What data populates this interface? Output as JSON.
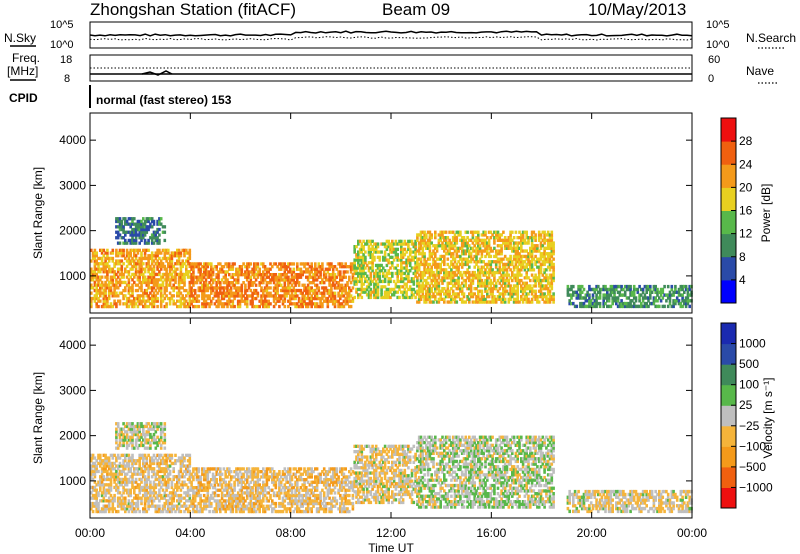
{
  "header": {
    "station": "Zhongshan Station (fitACF)",
    "beam": "Beam 09",
    "date": "10/May/2013"
  },
  "noise_panel": {
    "left_label": "N.Sky",
    "left_ticks": [
      "10^5",
      "10^0"
    ],
    "right_label": "N.Search",
    "right_ticks": [
      "10^5",
      "10^0"
    ]
  },
  "freq_panel": {
    "left_label_1": "Freq.",
    "left_label_2": "[MHz]",
    "left_ticks": [
      "18",
      "8"
    ],
    "right_label": "Nave",
    "right_ticks": [
      "60",
      "0"
    ]
  },
  "cpid": {
    "label": "CPID",
    "text": "normal (fast stereo) 153"
  },
  "time_axis": {
    "xlabel": "Time UT",
    "ticks": [
      "00:00",
      "04:00",
      "08:00",
      "12:00",
      "16:00",
      "20:00",
      "00:00"
    ]
  },
  "colors": {
    "power_scale": [
      "#0000ff",
      "#2a4aa8",
      "#3f8a5a",
      "#58b84a",
      "#e8d020",
      "#f49a1a",
      "#f06010",
      "#ee1010"
    ],
    "velocity_scale": [
      "#ee1010",
      "#f06010",
      "#f49a1a",
      "#f5b43a",
      "#bfbfbf",
      "#58b84a",
      "#3f8a5a",
      "#2a4aa8",
      "#1a2ab0"
    ]
  },
  "chart_data": [
    {
      "type": "heatmap",
      "title": "",
      "xlabel": "Time UT",
      "ylabel": "Slant Range [km]",
      "x_range_hours": [
        0,
        24
      ],
      "ylim": [
        180,
        4600
      ],
      "yticks": [
        "1000",
        "2000",
        "3000",
        "4000"
      ],
      "colorbar": {
        "label": "Power [dB]",
        "ticks": [
          "4",
          "8",
          "12",
          "16",
          "20",
          "24",
          "28"
        ],
        "range": [
          0,
          30
        ]
      },
      "scatter_regions": [
        {
          "t_start": 0.0,
          "t_end": 4.0,
          "range_min": 300,
          "range_max": 1600,
          "power": 20
        },
        {
          "t_start": 4.0,
          "t_end": 10.5,
          "range_min": 300,
          "range_max": 1300,
          "power": 22
        },
        {
          "t_start": 1.0,
          "t_end": 3.0,
          "range_min": 1700,
          "range_max": 2300,
          "power": 8
        },
        {
          "t_start": 10.5,
          "t_end": 13.0,
          "range_min": 500,
          "range_max": 1800,
          "power": 16
        },
        {
          "t_start": 13.0,
          "t_end": 18.5,
          "range_min": 400,
          "range_max": 2000,
          "power": 18
        },
        {
          "t_start": 19.0,
          "t_end": 24.0,
          "range_min": 300,
          "range_max": 800,
          "power": 10
        }
      ]
    },
    {
      "type": "heatmap",
      "title": "",
      "xlabel": "Time UT",
      "ylabel": "Slant Range [km]",
      "x_range_hours": [
        0,
        24
      ],
      "ylim": [
        180,
        4600
      ],
      "yticks": [
        "1000",
        "2000",
        "3000",
        "4000"
      ],
      "colorbar": {
        "label": "Velocity [m s⁻¹]",
        "ticks": [
          "1000",
          "500",
          "100",
          "25",
          "−25",
          "−100",
          "−500",
          "−1000"
        ],
        "range": [
          -1200,
          1200
        ]
      },
      "scatter_regions": [
        {
          "t_start": 0.0,
          "t_end": 4.0,
          "range_min": 300,
          "range_max": 1600,
          "velocity": -150
        },
        {
          "t_start": 4.0,
          "t_end": 10.5,
          "range_min": 300,
          "range_max": 1300,
          "velocity": -200
        },
        {
          "t_start": 1.0,
          "t_end": 3.0,
          "range_min": 1700,
          "range_max": 2300,
          "velocity": 10
        },
        {
          "t_start": 10.5,
          "t_end": 13.0,
          "range_min": 500,
          "range_max": 1800,
          "velocity": -120
        },
        {
          "t_start": 13.0,
          "t_end": 18.5,
          "range_min": 400,
          "range_max": 2000,
          "velocity": 60
        },
        {
          "t_start": 19.0,
          "t_end": 24.0,
          "range_min": 300,
          "range_max": 800,
          "velocity": -80
        }
      ]
    }
  ]
}
